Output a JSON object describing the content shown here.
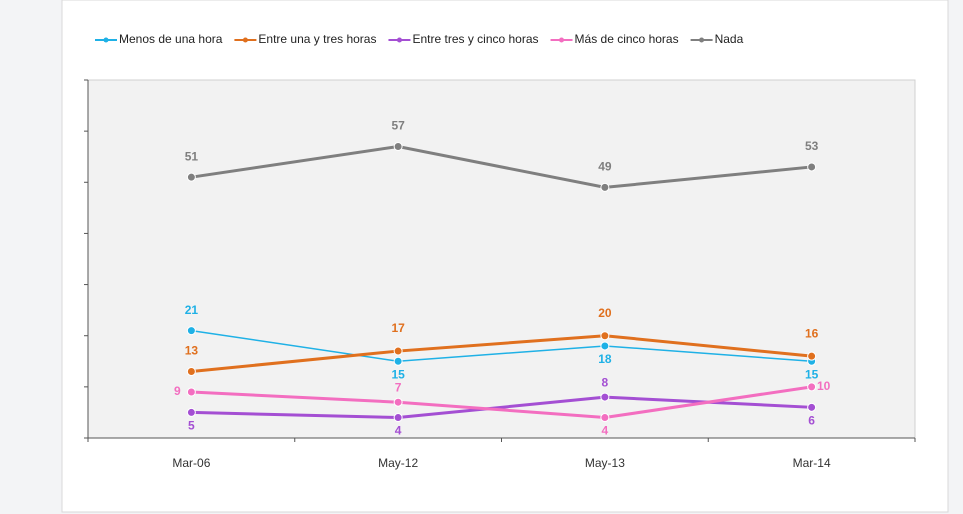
{
  "chart_data": {
    "type": "line",
    "categories": [
      "Mar-06",
      "May-12",
      "May-13",
      "Mar-14"
    ],
    "series": [
      {
        "name": "Menos de una hora",
        "color": "#1fb1e6",
        "values": [
          21,
          15,
          18,
          15
        ]
      },
      {
        "name": "Entre una y tres horas",
        "color": "#e0701e",
        "values": [
          13,
          17,
          20,
          16
        ]
      },
      {
        "name": "Entre tres y cinco horas",
        "color": "#a44fd3",
        "values": [
          5,
          4,
          8,
          6
        ]
      },
      {
        "name": "Más de cinco horas",
        "color": "#f36ec0",
        "values": [
          9,
          7,
          4,
          10
        ]
      },
      {
        "name": "Nada",
        "color": "#7f7f7f",
        "values": [
          51,
          57,
          49,
          53
        ]
      }
    ],
    "ylim": [
      0,
      70
    ],
    "yticks": [
      0,
      10,
      20,
      30,
      40,
      50,
      60,
      70
    ],
    "legend": "top"
  }
}
